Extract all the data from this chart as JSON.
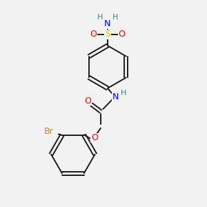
{
  "bg_color": "#f2f2f2",
  "bond_color": "#1a1a1a",
  "colors": {
    "O": "#ff0000",
    "N": "#0000ff",
    "S": "#cccc00",
    "Br": "#cc8800",
    "H": "#2a8a8a",
    "C": "#1a1a1a"
  }
}
